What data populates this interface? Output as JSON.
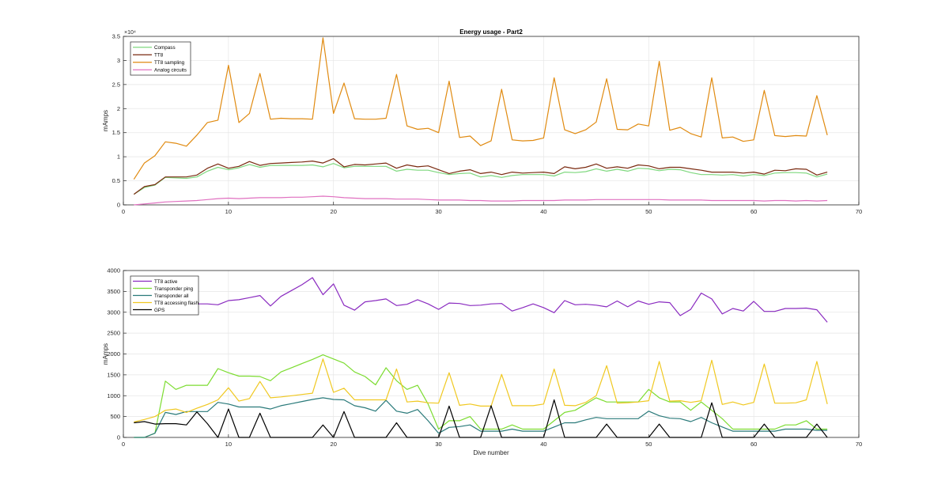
{
  "chart_data": [
    {
      "type": "line",
      "title": "Energy usage - Part2",
      "xlabel": "",
      "ylabel": "mAmps",
      "xlim": [
        0,
        70
      ],
      "ylim": [
        0,
        35000
      ],
      "xticks": [
        0,
        10,
        20,
        30,
        40,
        50,
        60,
        70
      ],
      "yticks": [
        0,
        5000,
        10000,
        15000,
        20000,
        25000,
        30000,
        35000
      ],
      "ytick_labels": [
        "0",
        "0.5",
        "1",
        "1.5",
        "2",
        "2.5",
        "3",
        "3.5"
      ],
      "y_exponent_label": "×10⁴",
      "grid": true,
      "legend_position": "top-left",
      "x": [
        1,
        2,
        3,
        4,
        5,
        6,
        7,
        8,
        9,
        10,
        11,
        12,
        13,
        14,
        15,
        16,
        17,
        18,
        19,
        20,
        21,
        22,
        23,
        24,
        25,
        26,
        27,
        28,
        29,
        30,
        31,
        32,
        33,
        34,
        35,
        36,
        37,
        38,
        39,
        40,
        41,
        42,
        43,
        44,
        45,
        46,
        47,
        48,
        49,
        50,
        51,
        52,
        53,
        54,
        55,
        56,
        57,
        58,
        59,
        60,
        61,
        62,
        63,
        64,
        65,
        66,
        67
      ],
      "series": [
        {
          "name": "Compass",
          "color": "#7fd87f",
          "values": [
            2200,
            3600,
            4100,
            5700,
            5600,
            5500,
            5800,
            7000,
            7800,
            7300,
            7700,
            8400,
            7800,
            8200,
            8200,
            8200,
            8200,
            8300,
            7900,
            8600,
            7700,
            8000,
            8000,
            8000,
            8000,
            7000,
            7400,
            7200,
            7200,
            6700,
            6300,
            6500,
            6600,
            5800,
            6100,
            5700,
            6100,
            6300,
            6300,
            6300,
            6000,
            6800,
            6700,
            6900,
            7500,
            7000,
            7400,
            7000,
            7600,
            7500,
            7100,
            7400,
            7300,
            6700,
            6300,
            6300,
            6200,
            6300,
            6000,
            6300,
            6100,
            6600,
            6700,
            6700,
            6600,
            5800,
            6400
          ]
        },
        {
          "name": "TT8",
          "color": "#7a2a10",
          "values": [
            2200,
            3800,
            4200,
            5800,
            5800,
            5800,
            6200,
            7600,
            8500,
            7600,
            8000,
            9000,
            8200,
            8600,
            8700,
            8800,
            8900,
            9100,
            8700,
            9600,
            7900,
            8400,
            8300,
            8500,
            8700,
            7600,
            8300,
            7900,
            8100,
            7300,
            6500,
            7000,
            7300,
            6500,
            6800,
            6300,
            6800,
            6600,
            6700,
            6800,
            6500,
            7900,
            7500,
            7800,
            8500,
            7600,
            7900,
            7600,
            8300,
            8100,
            7500,
            7800,
            7800,
            7500,
            7200,
            6800,
            6800,
            6800,
            6600,
            6800,
            6400,
            7200,
            7100,
            7500,
            7400,
            6200,
            6800
          ]
        },
        {
          "name": "TT8 sampling",
          "color": "#e08a10",
          "values": [
            5300,
            8700,
            10200,
            13100,
            12800,
            12200,
            14500,
            17100,
            17600,
            29000,
            17100,
            19000,
            27300,
            17800,
            18000,
            17900,
            17900,
            17800,
            34700,
            19000,
            25300,
            17900,
            17800,
            17800,
            18000,
            27100,
            16400,
            15700,
            15900,
            15000,
            25700,
            14000,
            14300,
            12300,
            13300,
            24000,
            13500,
            13300,
            13400,
            13900,
            26400,
            15600,
            14800,
            15600,
            17200,
            26200,
            15700,
            15600,
            16800,
            16400,
            29800,
            15500,
            16100,
            14800,
            14100,
            26400,
            13900,
            14100,
            13200,
            13500,
            23800,
            14400,
            14200,
            14400,
            14300,
            22700,
            14500
          ]
        },
        {
          "name": "Analog circuits",
          "color": "#e070c0",
          "values": [
            0,
            200,
            400,
            600,
            700,
            800,
            900,
            1100,
            1300,
            1400,
            1300,
            1400,
            1500,
            1500,
            1500,
            1600,
            1600,
            1700,
            1800,
            1700,
            1500,
            1400,
            1300,
            1300,
            1300,
            1200,
            1200,
            1200,
            1100,
            1000,
            1000,
            1000,
            900,
            900,
            800,
            800,
            800,
            900,
            900,
            900,
            900,
            1000,
            1000,
            1000,
            1100,
            1100,
            1100,
            1100,
            1100,
            1100,
            1100,
            1000,
            1000,
            1000,
            1000,
            900,
            900,
            900,
            900,
            900,
            800,
            900,
            900,
            800,
            900,
            800,
            900
          ]
        }
      ]
    },
    {
      "type": "line",
      "title": "",
      "xlabel": "Dive number",
      "ylabel": "mAmps",
      "xlim": [
        0,
        70
      ],
      "ylim": [
        0,
        4000
      ],
      "xticks": [
        0,
        10,
        20,
        30,
        40,
        50,
        60,
        70
      ],
      "yticks": [
        0,
        500,
        1000,
        1500,
        2000,
        2500,
        3000,
        3500,
        4000
      ],
      "ytick_labels": [
        "0",
        "500",
        "1000",
        "1500",
        "2000",
        "2500",
        "3000",
        "3500",
        "4000"
      ],
      "grid": true,
      "legend_position": "top-left",
      "x": [
        1,
        2,
        3,
        4,
        5,
        6,
        7,
        8,
        9,
        10,
        11,
        12,
        13,
        14,
        15,
        16,
        17,
        18,
        19,
        20,
        21,
        22,
        23,
        24,
        25,
        26,
        27,
        28,
        29,
        30,
        31,
        32,
        33,
        34,
        35,
        36,
        37,
        38,
        39,
        40,
        41,
        42,
        43,
        44,
        45,
        46,
        47,
        48,
        49,
        50,
        51,
        52,
        53,
        54,
        55,
        56,
        57,
        58,
        59,
        60,
        61,
        62,
        63,
        64,
        65,
        66,
        67
      ],
      "series": [
        {
          "name": "TT8 active",
          "color": "#8a2bc0",
          "values": [
            2950,
            3050,
            3200,
            3200,
            3200,
            3200,
            3200,
            3200,
            3180,
            3280,
            3300,
            3350,
            3400,
            3150,
            3380,
            3520,
            3660,
            3830,
            3420,
            3680,
            3170,
            3050,
            3250,
            3280,
            3320,
            3160,
            3190,
            3300,
            3200,
            3070,
            3220,
            3210,
            3160,
            3170,
            3200,
            3210,
            3030,
            3110,
            3200,
            3110,
            2990,
            3280,
            3180,
            3190,
            3170,
            3130,
            3270,
            3130,
            3270,
            3190,
            3250,
            3230,
            2920,
            3070,
            3460,
            3320,
            2960,
            3090,
            3030,
            3260,
            3020,
            3020,
            3090,
            3090,
            3100,
            3060,
            2760
          ]
        },
        {
          "name": "Transponder ping",
          "color": "#7cdc30",
          "values": [
            0,
            0,
            100,
            1350,
            1150,
            1250,
            1250,
            1250,
            1650,
            1550,
            1470,
            1470,
            1460,
            1360,
            1570,
            1670,
            1770,
            1870,
            1980,
            1880,
            1780,
            1570,
            1460,
            1260,
            1670,
            1360,
            1150,
            1250,
            800,
            200,
            400,
            400,
            500,
            200,
            200,
            200,
            300,
            200,
            200,
            200,
            400,
            600,
            650,
            800,
            950,
            850,
            850,
            850,
            850,
            1150,
            950,
            850,
            850,
            650,
            850,
            650,
            450,
            200,
            200,
            200,
            200,
            200,
            300,
            300,
            400,
            200,
            200
          ]
        },
        {
          "name": "Transponder all",
          "color": "#2a7a7a",
          "values": [
            0,
            0,
            100,
            600,
            550,
            620,
            620,
            620,
            840,
            800,
            730,
            730,
            730,
            680,
            760,
            810,
            860,
            910,
            950,
            910,
            900,
            760,
            710,
            630,
            890,
            630,
            580,
            670,
            400,
            100,
            240,
            260,
            300,
            150,
            150,
            150,
            200,
            150,
            150,
            150,
            250,
            350,
            350,
            420,
            480,
            450,
            450,
            450,
            450,
            630,
            520,
            460,
            450,
            380,
            480,
            350,
            250,
            150,
            150,
            150,
            150,
            150,
            200,
            200,
            200,
            170,
            170
          ]
        },
        {
          "name": "TT8 accessing flash",
          "color": "#f0c820",
          "values": [
            370,
            430,
            500,
            650,
            680,
            600,
            700,
            790,
            900,
            1190,
            870,
            930,
            1340,
            950,
            970,
            1000,
            1030,
            1060,
            1880,
            1080,
            1180,
            900,
            900,
            900,
            900,
            1640,
            850,
            870,
            830,
            820,
            1550,
            770,
            800,
            750,
            750,
            1510,
            760,
            760,
            760,
            800,
            1640,
            770,
            760,
            840,
            1000,
            1720,
            820,
            830,
            850,
            880,
            1820,
            870,
            880,
            840,
            880,
            1850,
            790,
            850,
            780,
            840,
            1760,
            820,
            820,
            830,
            900,
            1820,
            800
          ]
        },
        {
          "name": "GPS",
          "color": "#000000",
          "values": [
            350,
            380,
            320,
            330,
            330,
            300,
            610,
            330,
            0,
            680,
            0,
            0,
            580,
            0,
            0,
            0,
            0,
            0,
            300,
            0,
            620,
            0,
            0,
            0,
            0,
            350,
            0,
            0,
            0,
            0,
            750,
            0,
            0,
            0,
            760,
            0,
            0,
            0,
            0,
            0,
            900,
            0,
            0,
            0,
            0,
            320,
            0,
            0,
            0,
            0,
            320,
            0,
            0,
            0,
            0,
            830,
            0,
            0,
            0,
            0,
            320,
            0,
            0,
            0,
            0,
            320,
            0
          ]
        }
      ]
    }
  ]
}
